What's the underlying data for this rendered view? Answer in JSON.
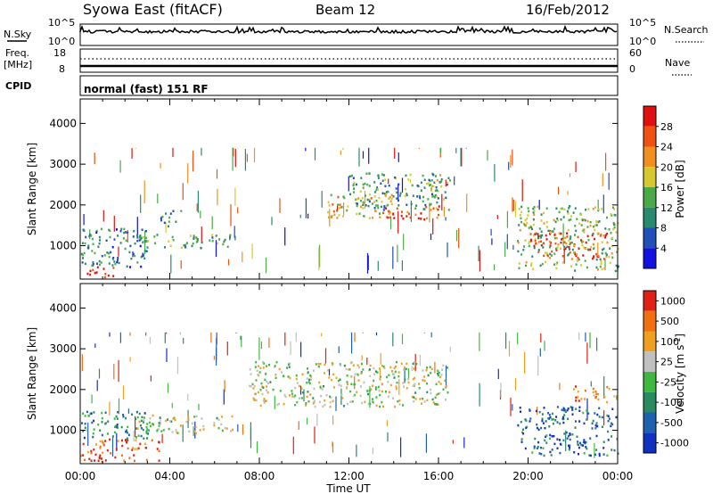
{
  "header": {
    "station": "Syowa East (fitACF)",
    "beam": "Beam 12",
    "date": "16/Feb/2012"
  },
  "status_panel": {
    "nsky_label": "N.Sky",
    "nsky_ticks": [
      "10^5",
      "10^0"
    ],
    "nsearch_label": "N.Search",
    "nsearch_ticks": [
      "10^5",
      "10^0"
    ],
    "freq_label": "Freq.",
    "freq_unit": "[MHz]",
    "freq_ticks": [
      "18",
      "8"
    ],
    "nave_label": "Nave",
    "nave_ticks": [
      "60",
      "0"
    ],
    "cpid_label": "CPID",
    "cpid_value": "normal (fast) 151 RF"
  },
  "chart_data": [
    {
      "type": "heatmap",
      "name": "power",
      "ylabel": "Slant Range [km]",
      "xlabel": "",
      "x_ticks": [
        "00:00",
        "04:00",
        "08:00",
        "12:00",
        "16:00",
        "20:00",
        "00:00"
      ],
      "xlim_hours": [
        0,
        24
      ],
      "y_ticks": [
        "1000",
        "2000",
        "3000",
        "4000"
      ],
      "ylim_km": [
        180,
        4600
      ],
      "colorbar": {
        "label": "Power [dB]",
        "ticks": [
          "4",
          "8",
          "12",
          "16",
          "20",
          "24",
          "28"
        ],
        "colors": [
          "#1010e0",
          "#2050b8",
          "#2a8a70",
          "#4aaa48",
          "#d8c830",
          "#f09020",
          "#f05010",
          "#e01010"
        ]
      },
      "regions": [
        {
          "t": [
            0.0,
            1.5
          ],
          "r": [
            250,
            500
          ],
          "level": 0.95
        },
        {
          "t": [
            0.0,
            3.0
          ],
          "r": [
            500,
            1500
          ],
          "level": 0.3
        },
        {
          "t": [
            2.5,
            6.8
          ],
          "r": [
            950,
            1300
          ],
          "level": 0.4
        },
        {
          "t": [
            3.5,
            4.5
          ],
          "r": [
            1500,
            1900
          ],
          "level": 0.3
        },
        {
          "t": [
            11.0,
            14.0
          ],
          "r": [
            1700,
            2300
          ],
          "level": 0.6
        },
        {
          "t": [
            13.5,
            16.0
          ],
          "r": [
            1650,
            2000
          ],
          "level": 0.85
        },
        {
          "t": [
            12.0,
            16.5
          ],
          "r": [
            1900,
            2800
          ],
          "level": 0.35
        },
        {
          "t": [
            15.5,
            16.2
          ],
          "r": [
            2200,
            2800
          ],
          "level": 0.5
        },
        {
          "t": [
            20.0,
            23.5
          ],
          "r": [
            700,
            1400
          ],
          "level": 0.9
        },
        {
          "t": [
            19.5,
            24.0
          ],
          "r": [
            400,
            2000
          ],
          "level": 0.45
        }
      ]
    },
    {
      "type": "heatmap",
      "name": "velocity",
      "ylabel": "Slant Range [km]",
      "xlabel": "Time UT",
      "x_ticks": [
        "00:00",
        "04:00",
        "08:00",
        "12:00",
        "16:00",
        "20:00",
        "00:00"
      ],
      "xlim_hours": [
        0,
        24
      ],
      "y_ticks": [
        "1000",
        "2000",
        "3000",
        "4000"
      ],
      "ylim_km": [
        180,
        4600
      ],
      "colorbar": {
        "label": "Velocity [m s^-1]",
        "ticks": [
          "1000",
          "500",
          "100",
          "25",
          "-25",
          "-100",
          "-500",
          "-1000"
        ],
        "colors": [
          "#1030c0",
          "#2060b0",
          "#2a8a60",
          "#40b840",
          "#c0c0c0",
          "#f0a020",
          "#f07010",
          "#e02010"
        ]
      },
      "regions": [
        {
          "t": [
            0.0,
            3.5
          ],
          "r": [
            250,
            800
          ],
          "level": 0.85
        },
        {
          "t": [
            0.0,
            3.0
          ],
          "r": [
            800,
            1500
          ],
          "level": 0.3
        },
        {
          "t": [
            2.5,
            6.8
          ],
          "r": [
            950,
            1400
          ],
          "level": 0.55
        },
        {
          "t": [
            7.5,
            16.5
          ],
          "r": [
            1600,
            2700
          ],
          "level": 0.55
        },
        {
          "t": [
            19.5,
            24.0
          ],
          "r": [
            400,
            1600
          ],
          "level": 0.2
        },
        {
          "t": [
            22.0,
            24.0
          ],
          "r": [
            1700,
            2100
          ],
          "level": 0.8
        }
      ]
    }
  ]
}
